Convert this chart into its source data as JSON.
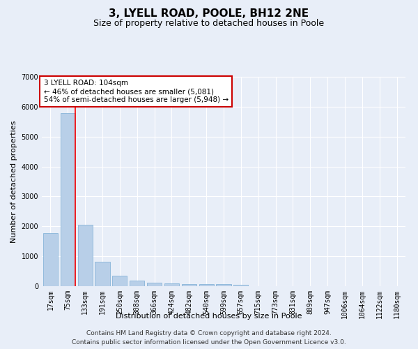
{
  "title": "3, LYELL ROAD, POOLE, BH12 2NE",
  "subtitle": "Size of property relative to detached houses in Poole",
  "xlabel": "Distribution of detached houses by size in Poole",
  "ylabel": "Number of detached properties",
  "categories": [
    "17sqm",
    "75sqm",
    "133sqm",
    "191sqm",
    "250sqm",
    "308sqm",
    "366sqm",
    "424sqm",
    "482sqm",
    "540sqm",
    "599sqm",
    "657sqm",
    "715sqm",
    "773sqm",
    "831sqm",
    "889sqm",
    "947sqm",
    "1006sqm",
    "1064sqm",
    "1122sqm",
    "1180sqm"
  ],
  "values": [
    1780,
    5780,
    2060,
    820,
    340,
    185,
    110,
    100,
    80,
    70,
    60,
    55,
    0,
    0,
    0,
    0,
    0,
    0,
    0,
    0,
    0
  ],
  "bar_color": "#b8cfe8",
  "bar_edge_color": "#7aadd4",
  "red_line_x": 1.42,
  "annotation_line1": "3 LYELL ROAD: 104sqm",
  "annotation_line2": "← 46% of detached houses are smaller (5,081)",
  "annotation_line3": "54% of semi-detached houses are larger (5,948) →",
  "annotation_box_color": "#ffffff",
  "annotation_box_edge_color": "#cc0000",
  "ylim": [
    0,
    7000
  ],
  "yticks": [
    0,
    1000,
    2000,
    3000,
    4000,
    5000,
    6000,
    7000
  ],
  "footer_line1": "Contains HM Land Registry data © Crown copyright and database right 2024.",
  "footer_line2": "Contains public sector information licensed under the Open Government Licence v3.0.",
  "background_color": "#e8eef8",
  "plot_background_color": "#e8eef8",
  "grid_color": "#ffffff",
  "title_fontsize": 11,
  "subtitle_fontsize": 9,
  "axis_label_fontsize": 8,
  "tick_fontsize": 7,
  "annotation_fontsize": 7.5,
  "footer_fontsize": 6.5
}
